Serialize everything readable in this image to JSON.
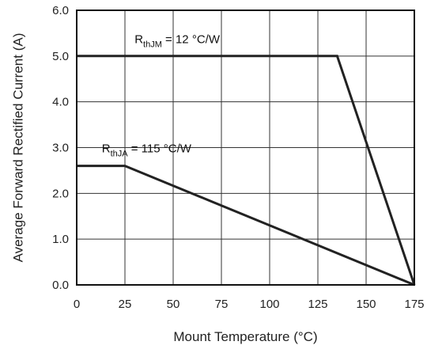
{
  "chart_data": {
    "type": "line",
    "title": "",
    "xlabel": "Mount Temperature (°C)",
    "ylabel": "Average Forward Rectified Current (A)",
    "xlim": [
      0,
      175
    ],
    "ylim": [
      0,
      6
    ],
    "xticks": [
      0,
      25,
      50,
      75,
      100,
      125,
      150,
      175
    ],
    "yticks": [
      0,
      1,
      2,
      3,
      4,
      5,
      6
    ],
    "xtick_labels": [
      "0",
      "25",
      "50",
      "75",
      "100",
      "125",
      "150",
      "175"
    ],
    "ytick_labels": [
      "0.0",
      "1.0",
      "2.0",
      "3.0",
      "4.0",
      "5.0",
      "6.0"
    ],
    "grid": true,
    "line_color": "#222222",
    "series": [
      {
        "x": [
          0,
          135,
          175
        ],
        "y": [
          5.0,
          5.0,
          0.0
        ],
        "annotation": {
          "main": "R",
          "sub": "thJM",
          "rest": " = 12 °C/W",
          "at": [
            30,
            5.28
          ]
        }
      },
      {
        "x": [
          0,
          25,
          175
        ],
        "y": [
          2.6,
          2.6,
          0.0
        ],
        "annotation": {
          "main": "R",
          "sub": "thJA",
          "rest": " = 115 °C/W",
          "at": [
            13,
            2.9
          ]
        }
      }
    ]
  }
}
